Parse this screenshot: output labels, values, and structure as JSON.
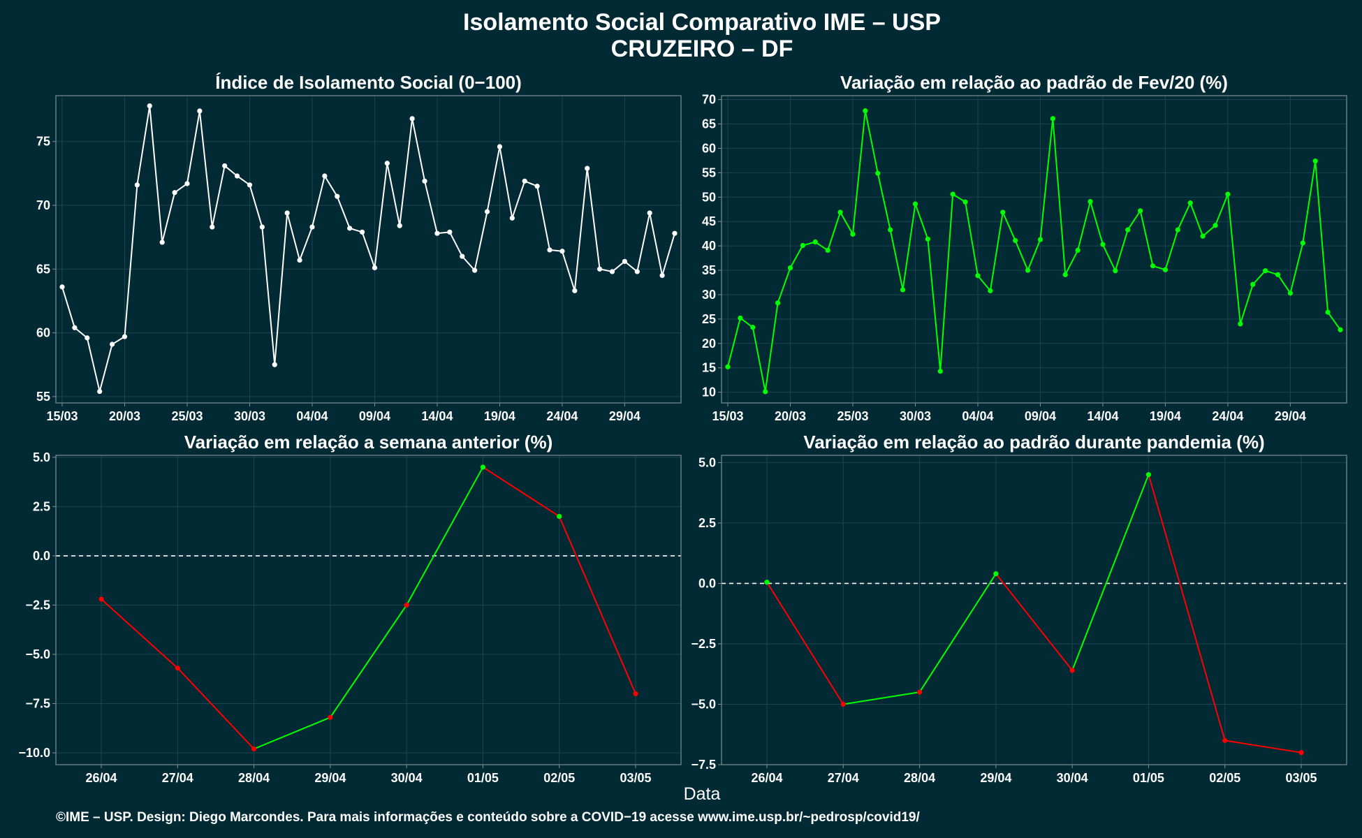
{
  "title_line1": "Isolamento Social Comparativo IME – USP",
  "title_line2": "CRUZEIRO – DF",
  "xlabel": "Data",
  "caption": "©IME – USP. Design: Diego Marcondes. Para mais informações e conteúdo sobre a COVID−19 acesse www.ime.usp.br/~pedrosp/covid19/",
  "colors": {
    "background": "#022a35",
    "panel_border": "#7f8f94",
    "grid": "#1d4450",
    "index_line": "#ffffff",
    "positive": "#00ff00",
    "negative": "#ff0000",
    "zero_line": "#ffffff"
  },
  "chart_data": [
    {
      "id": "indice",
      "type": "line",
      "title": "Índice de Isolamento Social (0−100)",
      "x_start": "2020-03-15",
      "xticks": [
        "15/03",
        "20/03",
        "25/03",
        "30/03",
        "04/04",
        "09/04",
        "14/04",
        "19/04",
        "24/04",
        "29/04"
      ],
      "ylim": [
        54.5,
        78.6
      ],
      "yticks": [
        "55",
        "60",
        "65",
        "70",
        "75"
      ],
      "ytick_values": [
        55,
        60,
        65,
        70,
        75
      ],
      "values": [
        63.6,
        60.4,
        59.6,
        55.4,
        59.1,
        59.7,
        71.6,
        77.8,
        67.1,
        71.0,
        71.7,
        77.4,
        68.3,
        73.1,
        72.3,
        71.6,
        68.3,
        57.5,
        69.4,
        65.7,
        68.3,
        72.3,
        70.7,
        68.2,
        67.9,
        65.1,
        73.3,
        68.4,
        76.8,
        71.9,
        67.8,
        67.9,
        66.0,
        64.9,
        69.5,
        74.6,
        69.0,
        71.9,
        71.5,
        66.5,
        66.4,
        63.3,
        72.9,
        65.0,
        64.8,
        65.6,
        64.8,
        69.4,
        64.5,
        67.8
      ],
      "grid": true,
      "color": "index"
    },
    {
      "id": "fev20",
      "type": "line",
      "title": "Variação em relação ao padrão de Fev/20 (%)",
      "x_start": "2020-03-15",
      "xticks": [
        "15/03",
        "20/03",
        "25/03",
        "30/03",
        "04/04",
        "09/04",
        "14/04",
        "19/04",
        "24/04",
        "29/04"
      ],
      "ylim": [
        7.8,
        70.8
      ],
      "yticks": [
        "10",
        "15",
        "20",
        "25",
        "30",
        "35",
        "40",
        "45",
        "50",
        "55",
        "60",
        "65",
        "70"
      ],
      "ytick_values": [
        10,
        15,
        20,
        25,
        30,
        35,
        40,
        45,
        50,
        55,
        60,
        65,
        70
      ],
      "values": [
        15.2,
        25.2,
        23.3,
        10.1,
        28.3,
        35.5,
        40.1,
        40.8,
        39.1,
        46.9,
        42.4,
        67.7,
        54.9,
        43.3,
        31.0,
        48.6,
        41.4,
        14.3,
        50.6,
        49.0,
        33.9,
        30.8,
        46.9,
        41.1,
        35.0,
        41.3,
        66.1,
        34.1,
        39.1,
        49.1,
        40.3,
        34.9,
        43.3,
        47.2,
        35.9,
        35.1,
        43.3,
        48.8,
        42.0,
        44.2,
        50.6,
        24.0,
        32.1,
        34.9,
        34.1,
        30.3,
        40.6,
        57.4,
        26.4,
        22.8
      ],
      "grid": true,
      "color": "positive"
    },
    {
      "id": "semana",
      "type": "line",
      "title": "Variação em relação a semana anterior (%)",
      "categories": [
        "26/04",
        "27/04",
        "28/04",
        "29/04",
        "30/04",
        "01/05",
        "02/05",
        "03/05"
      ],
      "values": [
        -2.2,
        -5.7,
        -9.8,
        -8.2,
        -2.5,
        4.5,
        2.0,
        -7.0
      ],
      "ylim": [
        -10.6,
        5.1
      ],
      "yticks": [
        "−10.0",
        "−7.5",
        "−5.0",
        "−2.5",
        "0.0",
        "2.5",
        "5.0"
      ],
      "ytick_values": [
        -10,
        -7.5,
        -5,
        -2.5,
        0,
        2.5,
        5
      ],
      "zero_line": true,
      "grid": true,
      "color": "sign"
    },
    {
      "id": "pandemia",
      "type": "line",
      "title": "Variação em relação ao padrão durante pandemia (%)",
      "categories": [
        "26/04",
        "27/04",
        "28/04",
        "29/04",
        "30/04",
        "01/05",
        "02/05",
        "03/05"
      ],
      "values": [
        0.05,
        -5.0,
        -4.5,
        0.4,
        -3.6,
        4.5,
        -6.5,
        -7.0
      ],
      "ylim": [
        -7.5,
        5.3
      ],
      "yticks": [
        "−7.5",
        "−5.0",
        "−2.5",
        "0.0",
        "2.5",
        "5.0"
      ],
      "ytick_values": [
        -7.5,
        -5,
        -2.5,
        0,
        2.5,
        5
      ],
      "zero_line": true,
      "grid": true,
      "color": "sign"
    }
  ]
}
